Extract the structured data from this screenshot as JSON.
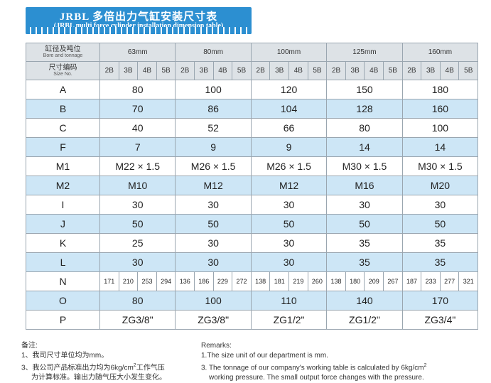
{
  "banner": {
    "title_cn": "JRBL 多倍出力气缸安装尺寸表",
    "title_en": "(JRBL multi force cylinder installation dimension table)"
  },
  "header": {
    "bore_label_cn": "缸径及吨位",
    "bore_label_en": "Bore and tonnage",
    "size_label_cn": "尺寸编码",
    "size_label_en": "Size No.",
    "bores": [
      "63mm",
      "80mm",
      "100mm",
      "125mm",
      "160mm"
    ],
    "tonnages": [
      "2B",
      "3B",
      "4B",
      "5B"
    ]
  },
  "rows": [
    {
      "label": "A",
      "values": [
        "80",
        "100",
        "120",
        "150",
        "180"
      ]
    },
    {
      "label": "B",
      "values": [
        "70",
        "86",
        "104",
        "128",
        "160"
      ]
    },
    {
      "label": "C",
      "values": [
        "40",
        "52",
        "66",
        "80",
        "100"
      ]
    },
    {
      "label": "F",
      "values": [
        "7",
        "9",
        "9",
        "14",
        "14"
      ]
    },
    {
      "label": "M1",
      "values": [
        "M22 × 1.5",
        "M26 × 1.5",
        "M26 × 1.5",
        "M30 × 1.5",
        "M30 × 1.5"
      ]
    },
    {
      "label": "M2",
      "values": [
        "M10",
        "M12",
        "M12",
        "M16",
        "M20"
      ]
    },
    {
      "label": "I",
      "values": [
        "30",
        "30",
        "30",
        "30",
        "30"
      ]
    },
    {
      "label": "J",
      "values": [
        "50",
        "50",
        "50",
        "50",
        "50"
      ]
    },
    {
      "label": "K",
      "values": [
        "25",
        "30",
        "30",
        "35",
        "35"
      ]
    },
    {
      "label": "L",
      "values": [
        "30",
        "30",
        "30",
        "35",
        "35"
      ]
    },
    {
      "label": "N",
      "values": [
        "171",
        "210",
        "253",
        "294",
        "136",
        "186",
        "229",
        "272",
        "138",
        "181",
        "219",
        "260",
        "138",
        "180",
        "209",
        "267",
        "187",
        "233",
        "277",
        "321"
      ]
    },
    {
      "label": "O",
      "values": [
        "80",
        "100",
        "110",
        "140",
        "170"
      ]
    },
    {
      "label": "P",
      "values": [
        "ZG3/8\"",
        "ZG3/8\"",
        "ZG1/2\"",
        "ZG1/2\"",
        "ZG3/4\""
      ]
    }
  ],
  "notes_cn": {
    "heading": "备注:",
    "line1": "1、我司尺寸单位均为mm。",
    "line2": "3、我公司产品标准出力均为6kg/cm",
    "line2_sup": "2",
    "line2_end": "工作气压",
    "line3": "为计算标准。输出力随气压大小发生变化。"
  },
  "notes_en": {
    "heading": "Remarks:",
    "line1": "1.The size unit of our department is mm.",
    "line2": "3. The tonnage of our company's working table is calculated by 6kg/cm",
    "line2_sup": "2",
    "line3": "working pressure. The small output force changes with the pressure."
  }
}
